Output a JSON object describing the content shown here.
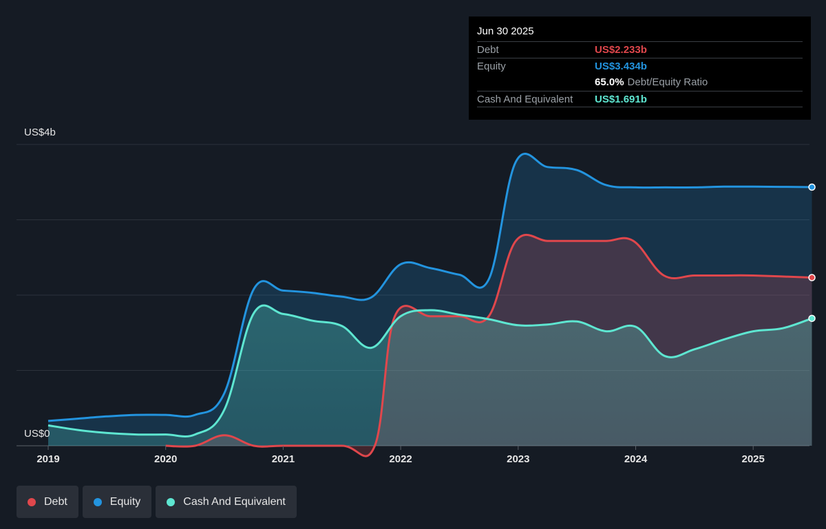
{
  "chart_data": {
    "type": "area",
    "ylabel_top": "US$4b",
    "ylabel_bottom": "US$0",
    "ylim": [
      0,
      4
    ],
    "xlim": [
      2019.0,
      2025.5
    ],
    "x_ticks": [
      "2019",
      "2020",
      "2021",
      "2022",
      "2023",
      "2024",
      "2025"
    ],
    "grid": true,
    "legend_position": "bottom-left",
    "series": [
      {
        "name": "Debt",
        "color": "#e0474c",
        "points": [
          [
            2020.0,
            0.0
          ],
          [
            2020.25,
            0.0
          ],
          [
            2020.5,
            0.14
          ],
          [
            2020.75,
            0.0
          ],
          [
            2021.0,
            0.0
          ],
          [
            2021.5,
            0.0
          ],
          [
            2021.78,
            0.0
          ],
          [
            2021.95,
            1.72
          ],
          [
            2022.25,
            1.72
          ],
          [
            2022.5,
            1.72
          ],
          [
            2022.75,
            1.72
          ],
          [
            2022.98,
            2.72
          ],
          [
            2023.25,
            2.72
          ],
          [
            2023.5,
            2.72
          ],
          [
            2023.75,
            2.72
          ],
          [
            2023.98,
            2.72
          ],
          [
            2024.24,
            2.26
          ],
          [
            2024.5,
            2.26
          ],
          [
            2024.75,
            2.26
          ],
          [
            2025.0,
            2.26
          ],
          [
            2025.5,
            2.233
          ]
        ]
      },
      {
        "name": "Equity",
        "color": "#2394df",
        "points": [
          [
            2019.0,
            0.33
          ],
          [
            2019.25,
            0.36
          ],
          [
            2019.5,
            0.39
          ],
          [
            2019.75,
            0.41
          ],
          [
            2020.0,
            0.41
          ],
          [
            2020.25,
            0.41
          ],
          [
            2020.5,
            0.7
          ],
          [
            2020.75,
            2.08
          ],
          [
            2021.0,
            2.06
          ],
          [
            2021.25,
            2.03
          ],
          [
            2021.5,
            1.98
          ],
          [
            2021.75,
            1.97
          ],
          [
            2022.0,
            2.41
          ],
          [
            2022.25,
            2.36
          ],
          [
            2022.5,
            2.27
          ],
          [
            2022.75,
            2.21
          ],
          [
            2022.98,
            3.77
          ],
          [
            2023.25,
            3.7
          ],
          [
            2023.5,
            3.66
          ],
          [
            2023.75,
            3.46
          ],
          [
            2024.0,
            3.43
          ],
          [
            2024.25,
            3.43
          ],
          [
            2024.5,
            3.43
          ],
          [
            2024.75,
            3.44
          ],
          [
            2025.0,
            3.44
          ],
          [
            2025.5,
            3.434
          ]
        ]
      },
      {
        "name": "Cash And Equivalent",
        "color": "#5ee6d1",
        "points": [
          [
            2019.0,
            0.27
          ],
          [
            2019.25,
            0.21
          ],
          [
            2019.5,
            0.17
          ],
          [
            2019.75,
            0.15
          ],
          [
            2020.0,
            0.15
          ],
          [
            2020.25,
            0.15
          ],
          [
            2020.5,
            0.48
          ],
          [
            2020.75,
            1.76
          ],
          [
            2021.0,
            1.75
          ],
          [
            2021.25,
            1.66
          ],
          [
            2021.5,
            1.59
          ],
          [
            2021.75,
            1.3
          ],
          [
            2022.0,
            1.72
          ],
          [
            2022.25,
            1.8
          ],
          [
            2022.5,
            1.74
          ],
          [
            2022.75,
            1.68
          ],
          [
            2023.0,
            1.6
          ],
          [
            2023.25,
            1.61
          ],
          [
            2023.5,
            1.65
          ],
          [
            2023.75,
            1.52
          ],
          [
            2024.0,
            1.58
          ],
          [
            2024.25,
            1.19
          ],
          [
            2024.5,
            1.28
          ],
          [
            2024.75,
            1.41
          ],
          [
            2025.0,
            1.52
          ],
          [
            2025.25,
            1.56
          ],
          [
            2025.5,
            1.691
          ]
        ]
      }
    ]
  },
  "tooltip": {
    "date": "Jun 30 2025",
    "debt_label": "Debt",
    "debt_value": "US$2.233b",
    "equity_label": "Equity",
    "equity_value": "US$3.434b",
    "ratio_pct": "65.0%",
    "ratio_label": "Debt/Equity Ratio",
    "cash_label": "Cash And Equivalent",
    "cash_value": "US$1.691b"
  },
  "legend": [
    {
      "label": "Debt",
      "color": "#e0474c"
    },
    {
      "label": "Equity",
      "color": "#2394df"
    },
    {
      "label": "Cash And Equivalent",
      "color": "#5ee6d1"
    }
  ]
}
